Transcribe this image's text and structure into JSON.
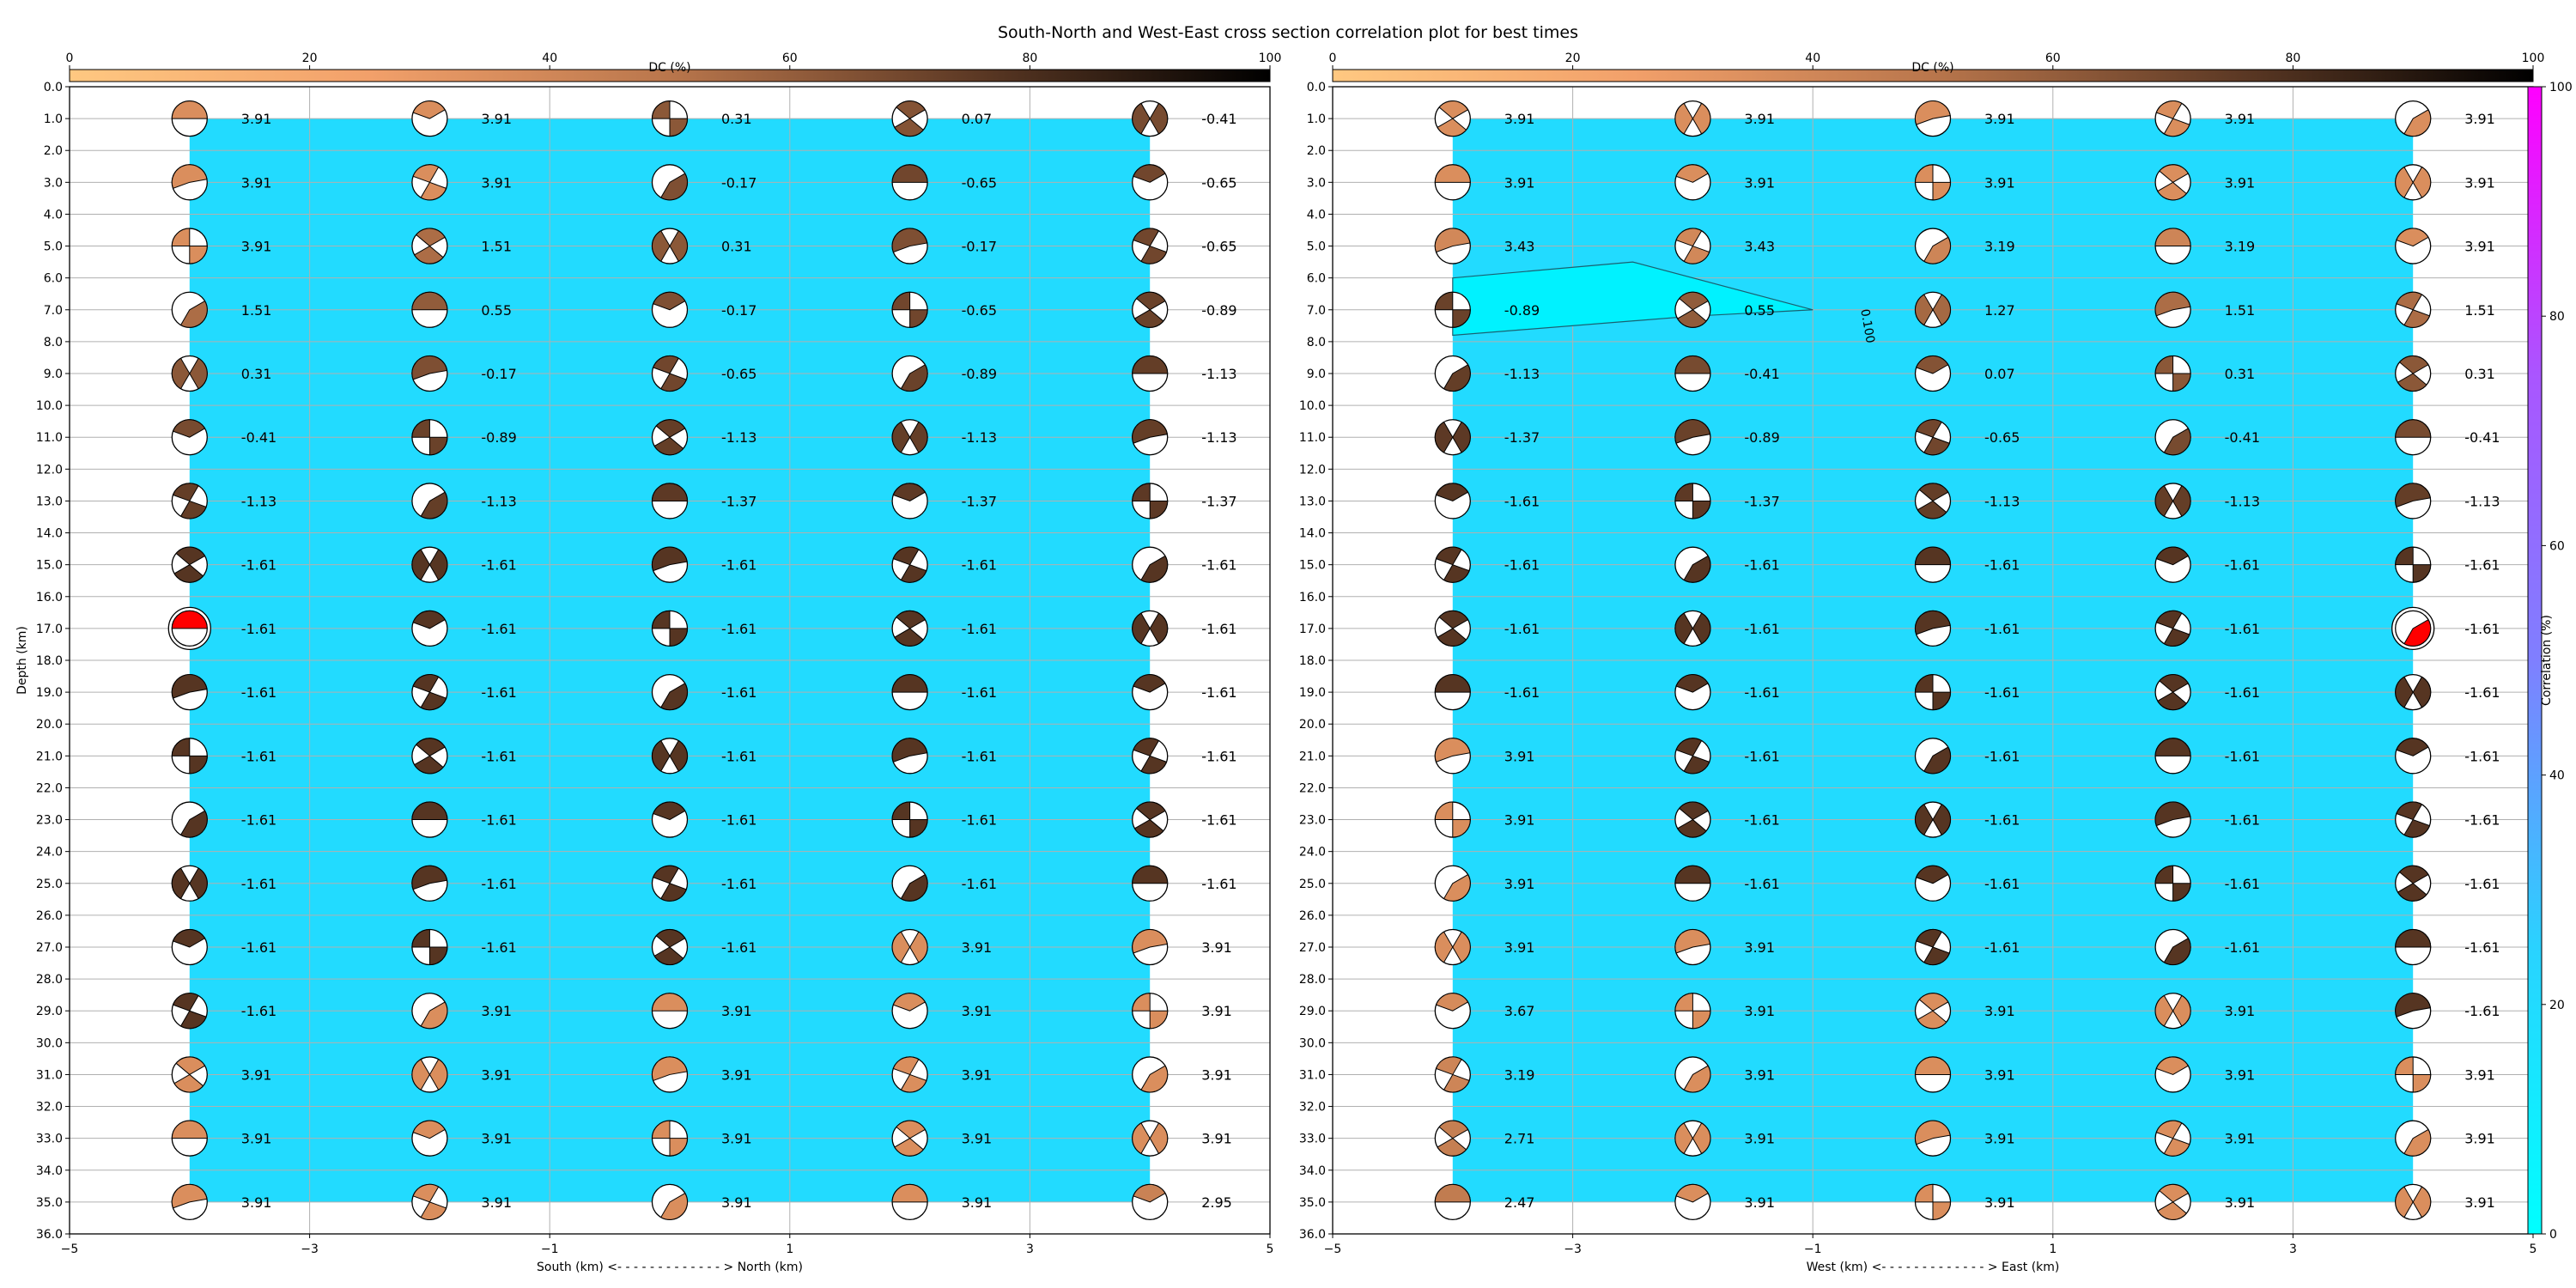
{
  "chart_data": {
    "type": "scatter",
    "title": "South-North and West-East cross section correlation plot for best times",
    "depths": [
      1,
      3,
      5,
      7,
      9,
      11,
      13,
      15,
      17,
      19,
      21,
      23,
      25,
      27,
      29,
      31,
      33,
      35
    ],
    "dc_colorbar": {
      "label": "DC (%)",
      "ticks": [
        0,
        20,
        40,
        60,
        80,
        100
      ]
    },
    "correlation_colorbar": {
      "label": "Correlation (%)",
      "ticks": [
        0,
        20,
        40,
        60,
        80,
        100
      ]
    },
    "y_ticks": [
      "0.0",
      "1.0",
      "2.0",
      "3.0",
      "4.0",
      "5.0",
      "6.0",
      "7.0",
      "8.0",
      "9.0",
      "10.0",
      "11.0",
      "12.0",
      "13.0",
      "14.0",
      "15.0",
      "16.0",
      "17.0",
      "18.0",
      "19.0",
      "20.0",
      "21.0",
      "22.0",
      "23.0",
      "24.0",
      "25.0",
      "26.0",
      "27.0",
      "28.0",
      "29.0",
      "30.0",
      "31.0",
      "32.0",
      "33.0",
      "34.0",
      "35.0",
      "36.0"
    ],
    "panels": [
      {
        "xlabel": "South (km) <- - - - - - - - - - - - - > North (km)",
        "ylabel": "Depth (km)",
        "xlim": [
          -5,
          5
        ],
        "ylim": [
          36,
          0
        ],
        "x_ticks": [
          "−5",
          "−3",
          "−1",
          "1",
          "3",
          "5"
        ],
        "x_positions": [
          -4,
          -2,
          0,
          2,
          4
        ],
        "background_correlation": 20,
        "best_cell": {
          "x": -4,
          "depth": 17
        },
        "contour": null,
        "values": [
          [
            "3.91",
            "3.91",
            "0.31",
            "0.07",
            "-0.41"
          ],
          [
            "3.91",
            "3.91",
            "-0.17",
            "-0.65",
            "-0.65"
          ],
          [
            "3.91",
            "1.51",
            "0.31",
            "-0.17",
            "-0.65"
          ],
          [
            "1.51",
            "0.55",
            "-0.17",
            "-0.65",
            "-0.89"
          ],
          [
            "0.31",
            "-0.17",
            "-0.65",
            "-0.89",
            "-1.13"
          ],
          [
            "-0.41",
            "-0.89",
            "-1.13",
            "-1.13",
            "-1.13"
          ],
          [
            "-1.13",
            "-1.13",
            "-1.37",
            "-1.37",
            "-1.37"
          ],
          [
            "-1.61",
            "-1.61",
            "-1.61",
            "-1.61",
            "-1.61"
          ],
          [
            "-1.61",
            "-1.61",
            "-1.61",
            "-1.61",
            "-1.61"
          ],
          [
            "-1.61",
            "-1.61",
            "-1.61",
            "-1.61",
            "-1.61"
          ],
          [
            "-1.61",
            "-1.61",
            "-1.61",
            "-1.61",
            "-1.61"
          ],
          [
            "-1.61",
            "-1.61",
            "-1.61",
            "-1.61",
            "-1.61"
          ],
          [
            "-1.61",
            "-1.61",
            "-1.61",
            "-1.61",
            "-1.61"
          ],
          [
            "-1.61",
            "-1.61",
            "-1.61",
            "3.91",
            "3.91"
          ],
          [
            "-1.61",
            "3.91",
            "3.91",
            "3.91",
            "3.91"
          ],
          [
            "3.91",
            "3.91",
            "3.91",
            "3.91",
            "3.91"
          ],
          [
            "3.91",
            "3.91",
            "3.91",
            "3.91",
            "3.91"
          ],
          [
            "3.91",
            "3.91",
            "3.91",
            "3.91",
            "2.95"
          ]
        ]
      },
      {
        "xlabel": "West (km) <- - - - - - - - - - - - - > East (km)",
        "ylabel": "",
        "xlim": [
          -5,
          5
        ],
        "ylim": [
          36,
          0
        ],
        "x_ticks": [
          "−5",
          "−3",
          "−1",
          "1",
          "3",
          "5"
        ],
        "x_positions": [
          -4,
          -2,
          0,
          2,
          4
        ],
        "background_correlation": 20,
        "best_cell": {
          "x": 4,
          "depth": 17
        },
        "contour": {
          "label": "0.100",
          "polygon": [
            [
              -4,
              6.0
            ],
            [
              -2.5,
              5.5
            ],
            [
              -1.0,
              7.0
            ],
            [
              -2.0,
              7.2
            ],
            [
              -4,
              7.8
            ]
          ]
        },
        "values": [
          [
            "3.91",
            "3.91",
            "3.91",
            "3.91",
            "3.91"
          ],
          [
            "3.91",
            "3.91",
            "3.91",
            "3.91",
            "3.91"
          ],
          [
            "3.43",
            "3.43",
            "3.19",
            "3.19",
            "3.91"
          ],
          [
            "-0.89",
            "0.55",
            "1.27",
            "1.51",
            "1.51"
          ],
          [
            "-1.13",
            "-0.41",
            "0.07",
            "0.31",
            "0.31"
          ],
          [
            "-1.37",
            "-0.89",
            "-0.65",
            "-0.41",
            "-0.41"
          ],
          [
            "-1.61",
            "-1.37",
            "-1.13",
            "-1.13",
            "-1.13"
          ],
          [
            "-1.61",
            "-1.61",
            "-1.61",
            "-1.61",
            "-1.61"
          ],
          [
            "-1.61",
            "-1.61",
            "-1.61",
            "-1.61",
            "-1.61"
          ],
          [
            "-1.61",
            "-1.61",
            "-1.61",
            "-1.61",
            "-1.61"
          ],
          [
            "3.91",
            "-1.61",
            "-1.61",
            "-1.61",
            "-1.61"
          ],
          [
            "3.91",
            "-1.61",
            "-1.61",
            "-1.61",
            "-1.61"
          ],
          [
            "3.91",
            "-1.61",
            "-1.61",
            "-1.61",
            "-1.61"
          ],
          [
            "3.91",
            "3.91",
            "-1.61",
            "-1.61",
            "-1.61"
          ],
          [
            "3.67",
            "3.91",
            "3.91",
            "3.91",
            "-1.61"
          ],
          [
            "3.19",
            "3.91",
            "3.91",
            "3.91",
            "3.91"
          ],
          [
            "2.71",
            "3.91",
            "3.91",
            "3.91",
            "3.91"
          ],
          [
            "2.47",
            "3.91",
            "3.91",
            "3.91",
            "3.91"
          ]
        ]
      }
    ]
  }
}
